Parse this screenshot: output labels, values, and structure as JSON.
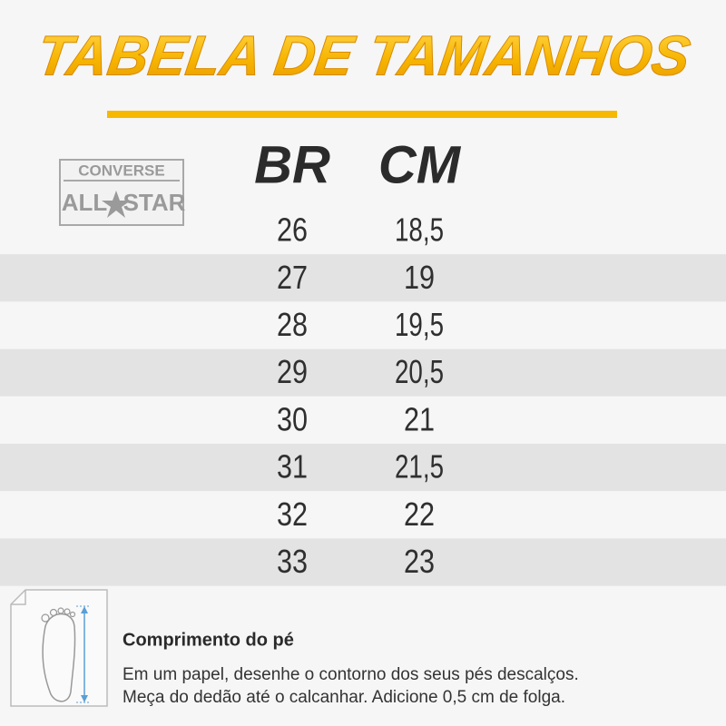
{
  "header": {
    "title": "TABELA DE TAMANHOS"
  },
  "logo": {
    "brand": "CONVERSE",
    "left": "ALL",
    "right": "STAR"
  },
  "table": {
    "columns": [
      "BR",
      "CM"
    ],
    "rows": [
      [
        "26",
        "18,5"
      ],
      [
        "27",
        "19"
      ],
      [
        "28",
        "19,5"
      ],
      [
        "29",
        "20,5"
      ],
      [
        "30",
        "21"
      ],
      [
        "31",
        "21,5"
      ],
      [
        "32",
        "22"
      ],
      [
        "33",
        "23"
      ]
    ]
  },
  "instructions": {
    "title": "Comprimento do pé",
    "lines": [
      "Em um papel, desenhe o contorno dos seus pés descalços.",
      "Meça do dedão até o calcanhar. Adicione 0,5 cm de folga."
    ]
  }
}
